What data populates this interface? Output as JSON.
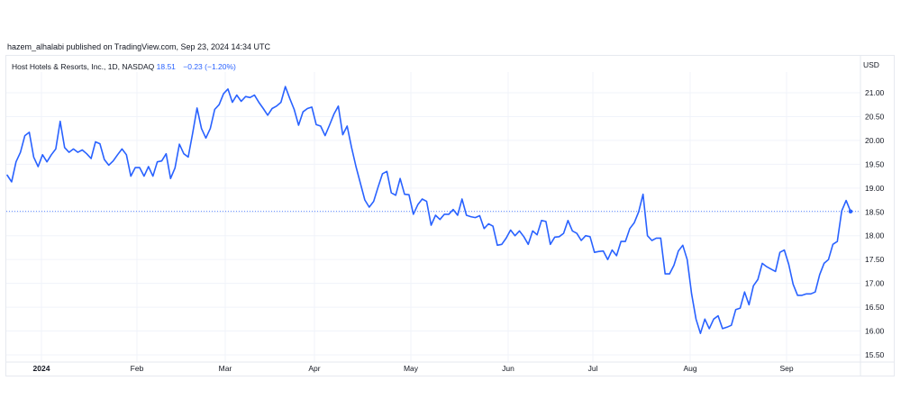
{
  "publish_text": "hazem_alhalabi published on TradingView.com, Sep 23, 2024 14:34 UTC",
  "legend": {
    "symbol": "Host Hotels & Resorts, Inc., 1D, NASDAQ",
    "price": "18.51",
    "change": "−0.23 (−1.20%)"
  },
  "currency": "USD",
  "colors": {
    "line": "#2962ff",
    "grid": "#f0f3fa",
    "border": "#e6e9ef",
    "text": "#131722"
  },
  "chart_data": {
    "type": "line",
    "title": "Host Hotels & Resorts, Inc., 1D, NASDAQ",
    "ylabel": "USD",
    "ylim": [
      15.5,
      21.0
    ],
    "yticks": [
      "21.00",
      "20.50",
      "20.00",
      "19.50",
      "19.00",
      "18.50",
      "18.00",
      "17.50",
      "17.00",
      "16.50",
      "16.00",
      "15.50"
    ],
    "xticks": [
      "2024",
      "Feb",
      "Mar",
      "Apr",
      "May",
      "Jun",
      "Jul",
      "Aug",
      "Sep"
    ],
    "last_value": 18.51,
    "grid": true,
    "series": [
      {
        "values": [
          19.27,
          19.13,
          19.55,
          19.75,
          20.1,
          20.17,
          19.65,
          19.45,
          19.7,
          19.55,
          19.7,
          19.82,
          20.4,
          19.85,
          19.75,
          19.82,
          19.75,
          19.8,
          19.72,
          19.62,
          19.97,
          19.93,
          19.6,
          19.48,
          19.57,
          19.7,
          19.82,
          19.7,
          19.25,
          19.43,
          19.43,
          19.25,
          19.45,
          19.25,
          19.55,
          19.57,
          19.72,
          19.2,
          19.42,
          19.92,
          19.72,
          19.65,
          20.15,
          20.68,
          20.25,
          20.05,
          20.25,
          20.65,
          20.75,
          20.98,
          21.08,
          20.8,
          20.95,
          20.82,
          20.92,
          20.9,
          20.95,
          20.8,
          20.67,
          20.53,
          20.67,
          20.72,
          20.8,
          21.13,
          20.88,
          20.65,
          20.32,
          20.6,
          20.67,
          20.7,
          20.33,
          20.3,
          20.1,
          20.32,
          20.55,
          20.72,
          20.12,
          20.3,
          19.85,
          19.45,
          19.1,
          18.75,
          18.6,
          18.72,
          19.02,
          19.3,
          19.35,
          18.9,
          18.85,
          19.2,
          18.87,
          18.86,
          18.45,
          18.65,
          18.77,
          18.72,
          18.22,
          18.43,
          18.34,
          18.45,
          18.45,
          18.55,
          18.43,
          18.77,
          18.43,
          18.4,
          18.38,
          18.42,
          18.15,
          18.25,
          18.2,
          17.8,
          17.82,
          17.95,
          18.12,
          18.0,
          18.1,
          17.98,
          17.82,
          18.1,
          18.02,
          18.32,
          18.3,
          17.82,
          17.97,
          17.98,
          18.05,
          18.32,
          18.1,
          18.05,
          17.9,
          18.0,
          17.98,
          17.65,
          17.67,
          17.68,
          17.5,
          17.7,
          17.58,
          17.88,
          17.88,
          18.15,
          18.27,
          18.5,
          18.87,
          18.0,
          17.9,
          17.95,
          17.95,
          17.2,
          17.2,
          17.38,
          17.68,
          17.8,
          17.5,
          16.78,
          16.25,
          15.95,
          16.25,
          16.05,
          16.25,
          16.32,
          16.05,
          16.08,
          16.12,
          16.45,
          16.48,
          16.82,
          16.55,
          16.95,
          17.08,
          17.42,
          17.35,
          17.3,
          17.25,
          17.65,
          17.7,
          17.4,
          16.98,
          16.75,
          16.75,
          16.78,
          16.78,
          16.82,
          17.18,
          17.42,
          17.5,
          17.82,
          17.88,
          18.52,
          18.74,
          18.51
        ]
      }
    ]
  }
}
